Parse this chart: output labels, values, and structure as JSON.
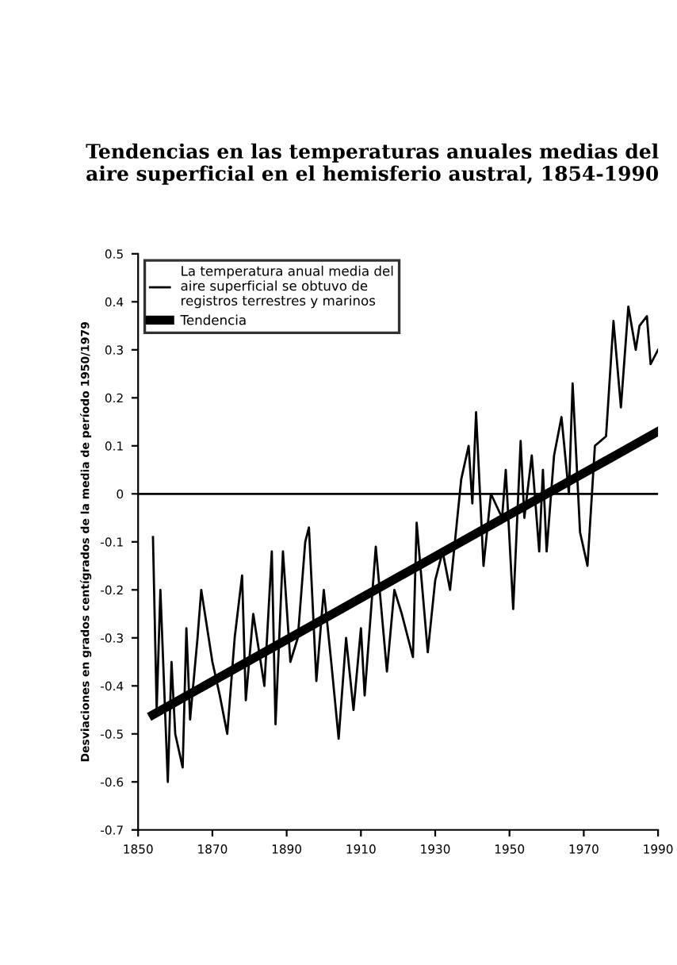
{
  "chart_data": {
    "type": "line",
    "title": "Tendencias en las temperaturas anuales medias del aire superficial en el hemisferio austral, 1854-1990",
    "ylabel": "Desviaciones en grados centígrados de la media de período 1950/1979",
    "series": [
      {
        "name": "La temperatura anual media del aire superficial se obtuvo de registros terrestres y marinos",
        "color": "#000000",
        "x": [
          1854,
          1855,
          1856,
          1858,
          1859,
          1860,
          1862,
          1863,
          1864,
          1866,
          1867,
          1870,
          1872,
          1874,
          1876,
          1878,
          1879,
          1881,
          1884,
          1886,
          1887,
          1889,
          1891,
          1893,
          1895,
          1896,
          1898,
          1900,
          1902,
          1904,
          1906,
          1908,
          1910,
          1911,
          1914,
          1917,
          1919,
          1921,
          1924,
          1925,
          1928,
          1930,
          1932,
          1934,
          1937,
          1939,
          1940,
          1941,
          1943,
          1945,
          1948,
          1949,
          1951,
          1953,
          1954,
          1956,
          1958,
          1959,
          1960,
          1962,
          1964,
          1966,
          1967,
          1969,
          1971,
          1973,
          1976,
          1978,
          1980,
          1982,
          1984,
          1985,
          1987,
          1988,
          1990
        ],
        "values": [
          -0.09,
          -0.45,
          -0.2,
          -0.6,
          -0.35,
          -0.5,
          -0.57,
          -0.28,
          -0.47,
          -0.3,
          -0.2,
          -0.35,
          -0.42,
          -0.5,
          -0.3,
          -0.17,
          -0.43,
          -0.25,
          -0.4,
          -0.12,
          -0.48,
          -0.12,
          -0.35,
          -0.3,
          -0.1,
          -0.07,
          -0.39,
          -0.2,
          -0.35,
          -0.51,
          -0.3,
          -0.45,
          -0.28,
          -0.42,
          -0.11,
          -0.37,
          -0.2,
          -0.25,
          -0.34,
          -0.06,
          -0.33,
          -0.18,
          -0.12,
          -0.2,
          0.03,
          0.1,
          -0.02,
          0.17,
          -0.15,
          0.0,
          -0.05,
          0.05,
          -0.24,
          0.11,
          -0.05,
          0.08,
          -0.12,
          0.05,
          -0.12,
          0.08,
          0.16,
          0.0,
          0.23,
          -0.08,
          -0.15,
          0.1,
          0.12,
          0.36,
          0.18,
          0.39,
          0.3,
          0.35,
          0.37,
          0.27,
          0.3
        ]
      },
      {
        "name": "Tendencia",
        "color": "#000000",
        "x": [
          1854,
          1990
        ],
        "values": [
          -0.46,
          0.13
        ]
      }
    ],
    "ref_lines": [
      {
        "axis": "y",
        "value": 0,
        "color": "#000000"
      }
    ],
    "xlim": [
      1850,
      1990
    ],
    "xticks": [
      1850,
      1870,
      1890,
      1910,
      1930,
      1950,
      1970,
      1990
    ],
    "ylim": [
      -0.7,
      0.5
    ],
    "yticks": [
      0.5,
      0.4,
      0.3,
      0.2,
      0.1,
      0,
      -0.1,
      -0.2,
      -0.3,
      -0.4,
      -0.5,
      -0.6,
      -0.7
    ],
    "legend": "top left",
    "grid": false
  }
}
